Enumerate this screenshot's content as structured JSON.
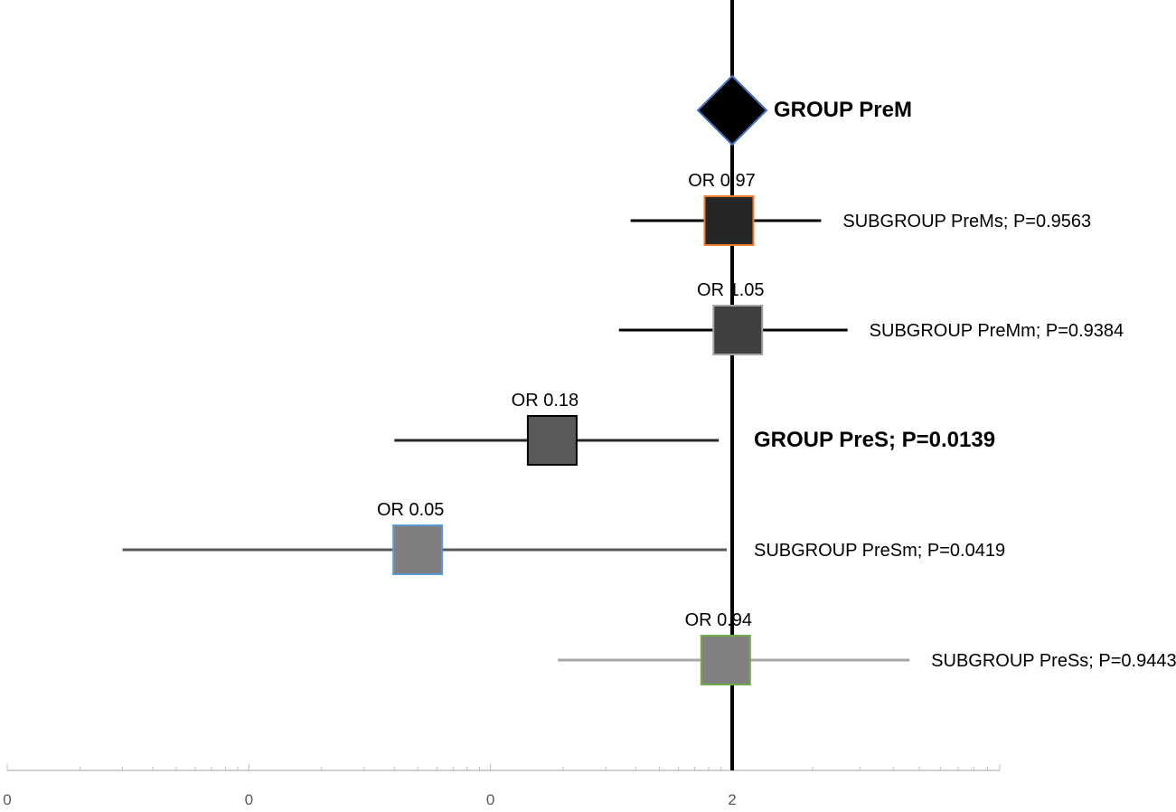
{
  "chart_data": {
    "type": "forest",
    "title": "",
    "xlabel": "",
    "ylabel": "",
    "x_scale": "log",
    "xlim": [
      0.001,
      10
    ],
    "x_tick_labels": [
      "0",
      "0",
      "0",
      "2"
    ],
    "reference_line": 1,
    "grid": false,
    "legend": "none",
    "rows": [
      {
        "marker": "diamond",
        "or": 1,
        "ci": null,
        "or_label": "",
        "label": "GROUP PreM",
        "label_bold": true,
        "fill": "#000000",
        "border": "#4472C4",
        "line_color": "#000000"
      },
      {
        "marker": "square",
        "or": 0.97,
        "ci": [
          0.38,
          2.15
        ],
        "or_label": "OR 0.97",
        "label": "SUBGROUP PreMs; P=0.9563",
        "label_bold": false,
        "fill": "#262626",
        "border": "#ED7D31",
        "line_color": "#000000"
      },
      {
        "marker": "square",
        "or": 1.05,
        "ci": [
          0.34,
          2.7
        ],
        "or_label": "OR 1.05",
        "label": "SUBGROUP PreMm; P=0.9384",
        "label_bold": false,
        "fill": "#404040",
        "border": "#A5A5A5",
        "line_color": "#000000"
      },
      {
        "marker": "square",
        "or": 0.18,
        "ci": [
          0.04,
          0.88
        ],
        "or_label": "OR 0.18",
        "label": "GROUP PreS; P=0.0139",
        "label_bold": true,
        "fill": "#595959",
        "border": "#000000",
        "line_color": "#262626"
      },
      {
        "marker": "square",
        "or": 0.05,
        "ci": [
          0.003,
          0.95
        ],
        "or_label": "OR 0.05",
        "label": "SUBGROUP PreSm; P=0.0419",
        "label_bold": false,
        "fill": "#7F7F7F",
        "border": "#5B9BD5",
        "line_color": "#595959"
      },
      {
        "marker": "square",
        "or": 0.94,
        "ci": [
          0.19,
          4.6
        ],
        "or_label": "OR 0.94",
        "label": "SUBGROUP PreSs; P=0.9443",
        "label_bold": false,
        "fill": "#808080",
        "border": "#70AD47",
        "line_color": "#A6A6A6"
      }
    ]
  }
}
